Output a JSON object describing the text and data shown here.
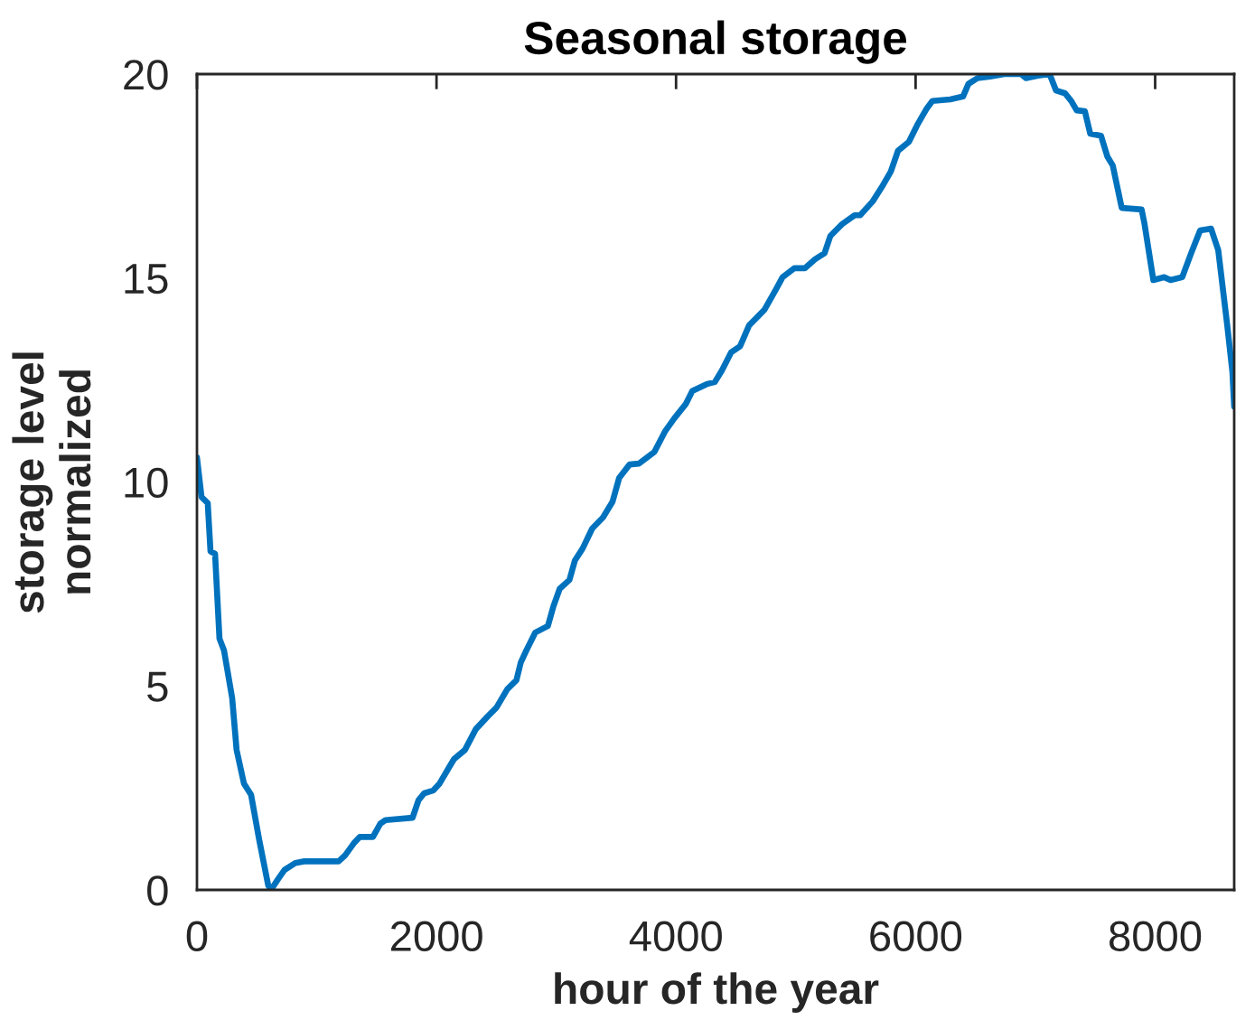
{
  "chart_data": {
    "type": "line",
    "title": "Seasonal storage",
    "xlabel": "hour of the year",
    "ylabel": "storage level\nnormalized",
    "xlim": [
      0,
      8660
    ],
    "ylim": [
      0,
      20
    ],
    "xticks": [
      0,
      2000,
      4000,
      6000,
      8000
    ],
    "yticks": [
      0,
      5,
      10,
      15,
      20
    ],
    "series": [
      {
        "color": "#0072bd",
        "x": [
          0,
          38,
          90,
          113,
          151,
          188,
          226,
          294,
          331,
          392,
          452,
          520,
          595,
          618,
          678,
          731,
          821,
          896,
          1183,
          1235,
          1311,
          1360,
          1469,
          1530,
          1574,
          1800,
          1850,
          1898,
          1974,
          2026,
          2102,
          2147,
          2237,
          2328,
          2426,
          2501,
          2591,
          2667,
          2704,
          2750,
          2825,
          2930,
          2976,
          3028,
          3110,
          3156,
          3220,
          3300,
          3390,
          3470,
          3525,
          3612,
          3690,
          3820,
          3910,
          3985,
          4083,
          4136,
          4256,
          4324,
          4384,
          4460,
          4535,
          4610,
          4738,
          4836,
          4889,
          4987,
          5075,
          5160,
          5240,
          5288,
          5386,
          5491,
          5537,
          5642,
          5718,
          5793,
          5853,
          5944,
          6019,
          6094,
          6140,
          6290,
          6396,
          6441,
          6516,
          6622,
          6697,
          6742,
          6880,
          6923,
          7021,
          7119,
          7172,
          7247,
          7300,
          7345,
          7413,
          7458,
          7548,
          7601,
          7646,
          7721,
          7887,
          7910,
          7985,
          8076,
          8128,
          8226,
          8301,
          8376,
          8467,
          8527,
          8602,
          8645,
          8660
        ],
        "values": [
          10.6,
          9.63,
          9.48,
          8.3,
          8.24,
          6.16,
          5.87,
          4.7,
          3.43,
          2.61,
          2.33,
          1.22,
          0.11,
          0,
          0.27,
          0.49,
          0.66,
          0.7,
          0.7,
          0.84,
          1.15,
          1.3,
          1.3,
          1.62,
          1.71,
          1.77,
          2.2,
          2.37,
          2.44,
          2.61,
          2.99,
          3.21,
          3.43,
          3.94,
          4.25,
          4.47,
          4.92,
          5.14,
          5.58,
          5.87,
          6.31,
          6.47,
          6.95,
          7.38,
          7.6,
          8.08,
          8.37,
          8.86,
          9.13,
          9.52,
          10.1,
          10.43,
          10.45,
          10.74,
          11.25,
          11.56,
          11.92,
          12.23,
          12.4,
          12.45,
          12.74,
          13.18,
          13.33,
          13.84,
          14.22,
          14.73,
          15.02,
          15.24,
          15.24,
          15.46,
          15.61,
          16.03,
          16.32,
          16.54,
          16.54,
          16.88,
          17.23,
          17.61,
          18.12,
          18.34,
          18.78,
          19.16,
          19.34,
          19.38,
          19.45,
          19.76,
          19.9,
          19.94,
          19.98,
          20,
          20,
          19.9,
          19.96,
          20,
          19.6,
          19.53,
          19.34,
          19.11,
          19.09,
          18.54,
          18.49,
          17.98,
          17.76,
          16.72,
          16.68,
          16.35,
          14.95,
          15.02,
          14.95,
          15.02,
          15.61,
          16.17,
          16.21,
          15.68,
          13.84,
          12.7,
          11.85
        ]
      }
    ]
  }
}
